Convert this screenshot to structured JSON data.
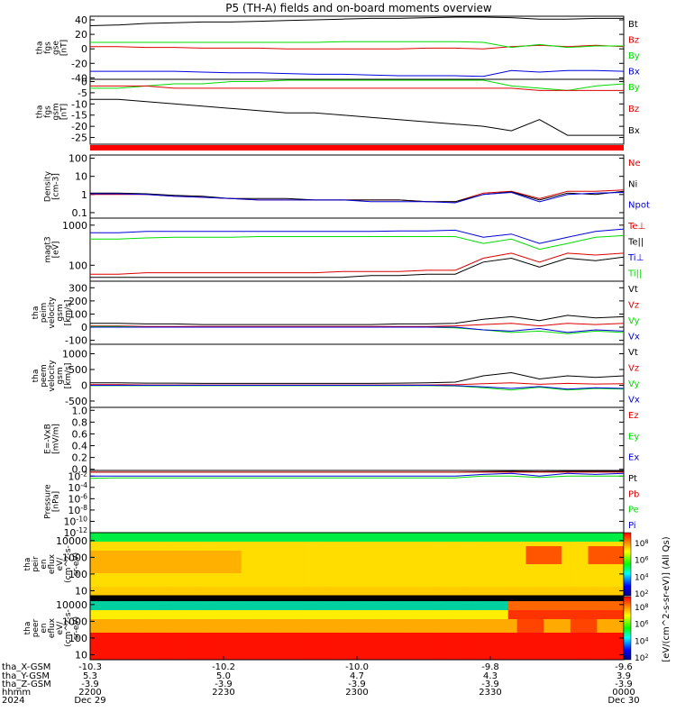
{
  "title": "P5 (TH-A) fields and on-board moments overview",
  "colors": {
    "black": "#000000",
    "red": "#dd0000",
    "green": "#00dd00",
    "blue": "#0000dd",
    "bar_red": "#ff0000"
  },
  "chart_data": [
    {
      "type": "line",
      "panel": "fgs_gse",
      "ylabel_lines": [
        "tha",
        "fgs",
        "gse",
        "[nT]"
      ],
      "yticks": [
        "40",
        "20",
        "0",
        "-20",
        "-40"
      ],
      "ylim": [
        -42,
        45
      ],
      "grid": false,
      "legend": "right",
      "series": [
        {
          "name": "Bt",
          "color": "black",
          "values": [
            32,
            33,
            35,
            36,
            37,
            37,
            38,
            39,
            40,
            41,
            42,
            42,
            43,
            44,
            44,
            43,
            41,
            41,
            42,
            42
          ]
        },
        {
          "name": "Bz",
          "color": "red",
          "values": [
            3,
            3,
            2,
            2,
            1,
            1,
            1,
            0,
            0,
            0,
            0,
            0,
            1,
            1,
            0,
            3,
            5,
            3,
            5,
            3
          ]
        },
        {
          "name": "By",
          "color": "green",
          "values": [
            9,
            9,
            9,
            9,
            9,
            9,
            9,
            9,
            9,
            10,
            10,
            10,
            10,
            10,
            9,
            2,
            6,
            2,
            4,
            4
          ]
        },
        {
          "name": "Bx",
          "color": "blue",
          "values": [
            -31,
            -31,
            -31,
            -31,
            -32,
            -33,
            -33,
            -34,
            -35,
            -35,
            -36,
            -37,
            -37,
            -37,
            -38,
            -30,
            -32,
            -30,
            -30,
            -31
          ]
        }
      ]
    },
    {
      "type": "line",
      "panel": "fgs_gsm",
      "ylabel_lines": [
        "tha",
        "fgs",
        "gsm",
        "[nT]"
      ],
      "yticks": [
        "0",
        "-5",
        "-10",
        "-15",
        "-20",
        "-25"
      ],
      "ylim": [
        -28,
        1
      ],
      "grid": false,
      "legend": "right",
      "series": [
        {
          "name": "By",
          "color": "green",
          "values": [
            -3,
            -3,
            -2,
            -1,
            -1,
            0,
            0,
            1,
            1,
            1,
            1,
            1,
            1,
            1,
            1,
            -2,
            -3,
            -4,
            -2,
            -1
          ]
        },
        {
          "name": "Bz",
          "color": "red",
          "values": [
            -2,
            -2,
            -2,
            -3,
            -3,
            -3,
            -3,
            -3,
            -3,
            -3,
            -3,
            -3,
            -3,
            -3,
            -3,
            -3,
            -4,
            -4,
            -4,
            -4
          ]
        },
        {
          "name": "Bx",
          "color": "black",
          "values": [
            -8,
            -8,
            -9,
            -10,
            -11,
            -12,
            -13,
            -14,
            -14,
            -15,
            -16,
            -17,
            -18,
            -19,
            -20,
            -22,
            -17,
            -24,
            -24,
            -24
          ]
        }
      ]
    },
    {
      "type": "line",
      "panel": "density",
      "ylabel_lines": [
        "Density",
        "[cm-3]"
      ],
      "yticks": [
        "100",
        "10",
        "1",
        "0.1"
      ],
      "scale": "log",
      "ylim": [
        0.05,
        150
      ],
      "grid": false,
      "legend": "right",
      "series": [
        {
          "name": "Ne",
          "color": "red",
          "values": [
            1.0,
            1.0,
            1.0,
            0.8,
            0.7,
            0.6,
            0.5,
            0.5,
            0.5,
            0.5,
            0.5,
            0.5,
            0.4,
            0.4,
            1.2,
            1.5,
            0.6,
            1.5,
            1.5,
            1.8
          ]
        },
        {
          "name": "Ni",
          "color": "black",
          "values": [
            1.2,
            1.2,
            1.1,
            0.9,
            0.8,
            0.6,
            0.6,
            0.6,
            0.5,
            0.5,
            0.5,
            0.5,
            0.4,
            0.4,
            1.0,
            1.4,
            0.5,
            1.2,
            1.0,
            1.5
          ]
        },
        {
          "name": "Npot",
          "color": "blue",
          "values": [
            1.1,
            1.1,
            1.0,
            0.8,
            0.7,
            0.6,
            0.5,
            0.5,
            0.5,
            0.5,
            0.4,
            0.4,
            0.4,
            0.35,
            1.0,
            1.3,
            0.4,
            1.0,
            1.2,
            1.3
          ]
        }
      ]
    },
    {
      "type": "line",
      "panel": "temperature",
      "ylabel_lines": [
        "magt3",
        "[eV]"
      ],
      "yticks": [
        "1000",
        "100"
      ],
      "scale": "log",
      "ylim": [
        40,
        1500
      ],
      "grid": false,
      "legend": "right",
      "series": [
        {
          "name": "Te⊥",
          "color": "red",
          "values": [
            60,
            60,
            65,
            65,
            65,
            65,
            65,
            65,
            65,
            70,
            70,
            70,
            75,
            75,
            150,
            200,
            120,
            200,
            180,
            200
          ]
        },
        {
          "name": "Te||",
          "color": "black",
          "values": [
            50,
            50,
            50,
            50,
            50,
            50,
            50,
            50,
            50,
            50,
            55,
            55,
            60,
            60,
            120,
            150,
            90,
            150,
            130,
            160
          ]
        },
        {
          "name": "Ti⊥",
          "color": "blue",
          "values": [
            650,
            650,
            700,
            700,
            700,
            700,
            700,
            700,
            700,
            700,
            700,
            720,
            720,
            750,
            500,
            600,
            350,
            500,
            700,
            800
          ]
        },
        {
          "name": "Ti||",
          "color": "green",
          "values": [
            450,
            450,
            480,
            500,
            500,
            500,
            520,
            520,
            520,
            520,
            520,
            520,
            520,
            520,
            350,
            450,
            250,
            350,
            500,
            550
          ]
        }
      ]
    },
    {
      "type": "line",
      "panel": "peim_velocity",
      "ylabel_lines": [
        "tha",
        "peim",
        "velocity",
        "gsm",
        "[km/s]"
      ],
      "yticks": [
        "300",
        "200",
        "100",
        "0",
        "-100"
      ],
      "ylim": [
        -130,
        350
      ],
      "grid": false,
      "legend": "right",
      "series": [
        {
          "name": "Vt",
          "color": "black",
          "values": [
            30,
            30,
            25,
            25,
            20,
            20,
            20,
            20,
            20,
            20,
            20,
            25,
            25,
            30,
            60,
            80,
            50,
            90,
            70,
            80
          ]
        },
        {
          "name": "Vz",
          "color": "red",
          "values": [
            10,
            10,
            5,
            5,
            5,
            5,
            5,
            5,
            5,
            5,
            5,
            5,
            5,
            10,
            20,
            30,
            10,
            30,
            20,
            30
          ]
        },
        {
          "name": "Vy",
          "color": "green",
          "values": [
            5,
            5,
            0,
            0,
            0,
            0,
            0,
            0,
            0,
            0,
            0,
            0,
            0,
            -5,
            -20,
            -40,
            -30,
            -50,
            -30,
            -40
          ]
        },
        {
          "name": "Vx",
          "color": "blue",
          "values": [
            0,
            0,
            0,
            0,
            0,
            0,
            0,
            0,
            0,
            0,
            0,
            0,
            0,
            0,
            -20,
            -30,
            -10,
            -40,
            -20,
            -30
          ]
        }
      ]
    },
    {
      "type": "line",
      "panel": "peem_velocity",
      "ylabel_lines": [
        "tha",
        "peem",
        "velocity",
        "gsm",
        "[km/s]"
      ],
      "yticks": [
        "1000",
        "500",
        "0",
        "-500"
      ],
      "ylim": [
        -700,
        1300
      ],
      "grid": false,
      "legend": "right",
      "series": [
        {
          "name": "Vt",
          "color": "black",
          "values": [
            80,
            80,
            70,
            70,
            60,
            60,
            60,
            60,
            60,
            60,
            60,
            70,
            80,
            100,
            300,
            400,
            200,
            300,
            250,
            300
          ]
        },
        {
          "name": "Vz",
          "color": "red",
          "values": [
            20,
            20,
            10,
            10,
            10,
            10,
            10,
            10,
            10,
            10,
            10,
            10,
            10,
            20,
            50,
            80,
            30,
            60,
            40,
            50
          ]
        },
        {
          "name": "Vy",
          "color": "green",
          "values": [
            -10,
            -10,
            -10,
            -10,
            -10,
            -10,
            -10,
            -10,
            -10,
            -10,
            -10,
            -10,
            -10,
            -20,
            -80,
            -150,
            -60,
            -150,
            -100,
            -120
          ]
        },
        {
          "name": "Vx",
          "color": "blue",
          "values": [
            0,
            0,
            0,
            0,
            0,
            0,
            0,
            0,
            0,
            0,
            0,
            0,
            0,
            -10,
            -50,
            -100,
            -40,
            -120,
            -80,
            -100
          ]
        }
      ]
    },
    {
      "type": "line",
      "panel": "efield",
      "ylabel_lines": [
        "E=-VxB",
        "[mV/m]"
      ],
      "yticks": [
        "1.0",
        "0.8",
        "0.6",
        "0.4",
        "0.2",
        "0.0"
      ],
      "ylim": [
        -0.02,
        1.05
      ],
      "grid": false,
      "legend": "right",
      "series": [
        {
          "name": "Ez",
          "color": "red",
          "values": []
        },
        {
          "name": "Ey",
          "color": "green",
          "values": []
        },
        {
          "name": "Ex",
          "color": "blue",
          "values": []
        }
      ]
    },
    {
      "type": "line",
      "panel": "pressure",
      "ylabel_lines": [
        "Pressure",
        "[nPa]"
      ],
      "yticks": [
        "10^-2",
        "10^-4",
        "10^-6",
        "10^-8",
        "10^-10",
        "10^-12"
      ],
      "scale": "log",
      "ylim": [
        1e-12,
        0.1
      ],
      "grid": false,
      "legend": "right",
      "series": [
        {
          "name": "Pt",
          "color": "black",
          "values": [
            0.05,
            0.05,
            0.05,
            0.05,
            0.05,
            0.05,
            0.05,
            0.05,
            0.05,
            0.05,
            0.05,
            0.05,
            0.05,
            0.05,
            0.06,
            0.07,
            0.06,
            0.07,
            0.07,
            0.07
          ]
        },
        {
          "name": "Pb",
          "color": "red",
          "values": [
            0.05,
            0.05,
            0.05,
            0.05,
            0.05,
            0.05,
            0.05,
            0.05,
            0.05,
            0.05,
            0.05,
            0.05,
            0.05,
            0.05,
            0.05,
            0.05,
            0.05,
            0.05,
            0.05,
            0.05
          ]
        },
        {
          "name": "Pe",
          "color": "green",
          "values": [
            0.004,
            0.005,
            0.005,
            0.005,
            0.005,
            0.005,
            0.005,
            0.005,
            0.005,
            0.005,
            0.005,
            0.005,
            0.005,
            0.005,
            0.01,
            0.01,
            0.006,
            0.01,
            0.01,
            0.01
          ]
        },
        {
          "name": "Pi",
          "color": "blue",
          "values": [
            0.01,
            0.01,
            0.01,
            0.01,
            0.01,
            0.01,
            0.01,
            0.01,
            0.01,
            0.01,
            0.01,
            0.01,
            0.01,
            0.01,
            0.02,
            0.03,
            0.01,
            0.03,
            0.02,
            0.03
          ]
        }
      ]
    },
    {
      "type": "heatmap",
      "panel": "peir_spectrogram",
      "ylabel_lines": [
        "tha",
        "peir",
        "en",
        "eflux",
        "eV/",
        "(cm^2-s-",
        "sr-eV)"
      ],
      "yticks": [
        "10000",
        "1000",
        "100",
        "10"
      ],
      "scale": "log"
    },
    {
      "type": "heatmap",
      "panel": "peer_spectrogram",
      "ylabel_lines": [
        "tha",
        "peer",
        "en",
        "eflux",
        "eV/",
        "(cm^2-s-",
        "sr-eV)"
      ],
      "yticks": [
        "10000",
        "1000",
        "100",
        "10"
      ],
      "scale": "log"
    }
  ],
  "colorbar": {
    "label": "[eV/(cm^2-s-sr-eV)] (All Qs)",
    "ticks_peir": [
      "10^8",
      "10^6",
      "10^4",
      "10^2"
    ],
    "ticks_peer": [
      "10^8",
      "10^6",
      "10^4",
      "10^2"
    ]
  },
  "xaxis": {
    "row_labels": [
      "tha_X-GSM",
      "tha_Y-GSM",
      "tha_Z-GSM",
      "hhmm",
      "2024"
    ],
    "columns": [
      [
        "-10.3",
        "5.3",
        "-3.9",
        "2200",
        "Dec 29"
      ],
      [
        "-10.2",
        "5.0",
        "-3.9",
        "2230",
        ""
      ],
      [
        "-10.0",
        "4.7",
        "-3.9",
        "2300",
        ""
      ],
      [
        "-9.8",
        "4.3",
        "-3.9",
        "2330",
        ""
      ],
      [
        "-9.6",
        "3.9",
        "-3.9",
        "0000",
        "Dec 30"
      ]
    ]
  }
}
